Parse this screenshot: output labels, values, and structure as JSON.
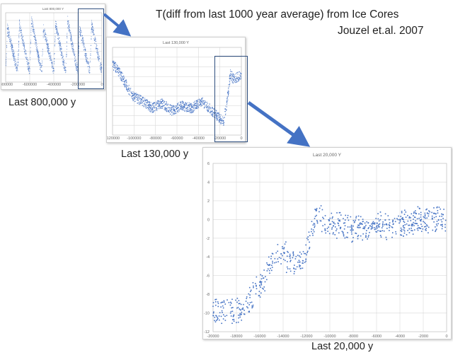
{
  "heading": {
    "line1": "T(diff from last 1000 year average) from Ice Cores",
    "line2": "Jouzel et.al. 2007"
  },
  "captions": {
    "panel1": "Last 800,000 y",
    "panel2": "Last 130,000 y",
    "panel3": "Last 20,000 y"
  },
  "colors": {
    "points": "#4472c4",
    "arrows": "#4472c4",
    "highlight_box": "#2f4f7f",
    "grid": "#d9d9d9"
  },
  "chart_data": [
    {
      "type": "scatter",
      "title": "Last 800,000 Y",
      "xlim": [
        -800000,
        0
      ],
      "ylim": [
        -12,
        6
      ],
      "grid": true,
      "x_ticks": [
        "-800000",
        "-600000",
        "-400000",
        "-200000",
        "0"
      ],
      "y_ticks": [],
      "description_of_series": "Temperature difference; glacial cycles about 100,000 y apart, interglacial peaks near 0 to +4, glacial troughs near -8 to -10"
    },
    {
      "type": "scatter",
      "title": "Last 130,000 Y",
      "xlim": [
        -130000,
        0
      ],
      "ylim": [
        -12,
        6
      ],
      "grid": true,
      "x_ticks": [
        "-120000",
        "-100000",
        "-80000",
        "-60000",
        "-40000",
        "-20000",
        "0"
      ],
      "y_ticks": []
    },
    {
      "type": "scatter",
      "title": "Last 20,000 Y",
      "xlim": [
        -20000,
        0
      ],
      "ylim": [
        -12,
        6
      ],
      "grid": true,
      "x_ticks": [
        "-20000",
        "-18000",
        "-16000",
        "-14000",
        "-12000",
        "-10000",
        "-8000",
        "-6000",
        "-4000",
        "-2000",
        "0"
      ],
      "y_ticks": [
        "6",
        "4",
        "2",
        "0",
        "-2",
        "-4",
        "-6",
        "-8",
        "-10",
        "-12"
      ],
      "series_profile": {
        "x": [
          -20000,
          -18000,
          -17000,
          -16000,
          -15000,
          -14500,
          -14000,
          -13500,
          -13000,
          -12500,
          -12000,
          -11600,
          -11000,
          -10000,
          -8000,
          -6000,
          -4000,
          -2000,
          0
        ],
        "y": [
          -10.0,
          -9.7,
          -9.0,
          -7.0,
          -5.0,
          -3.8,
          -3.5,
          -4.5,
          -4.7,
          -4.5,
          -3.5,
          -1.0,
          0.5,
          -0.5,
          -1.0,
          -0.8,
          -0.5,
          0.0,
          0.2
        ]
      }
    }
  ]
}
